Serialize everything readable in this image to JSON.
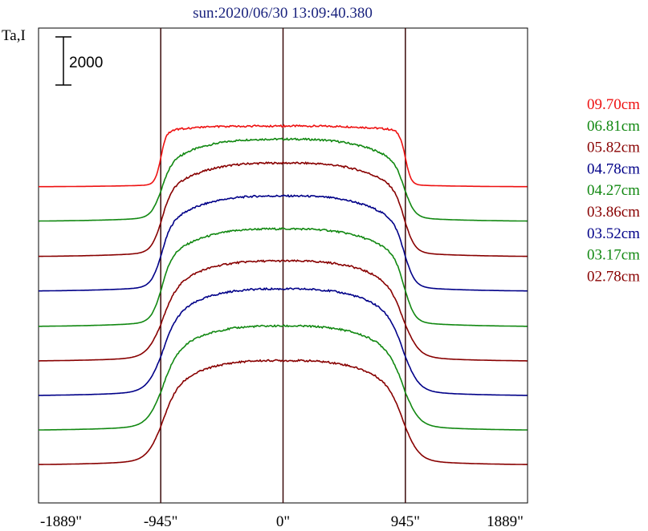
{
  "chart_data": {
    "type": "line",
    "title": "sun:2020/06/30 13:09:40.380",
    "ylabel": "Ta,I",
    "scale_bar_label": "2000",
    "x_ticks": [
      "-1889\"",
      "-945\"",
      "0\"",
      "945\"",
      "1889\""
    ],
    "x_values": [
      -1889,
      -945,
      0,
      945,
      1889
    ],
    "vertical_lines_at": [
      -945,
      0,
      945
    ],
    "series": [
      {
        "name": "09.70cm",
        "color": "#ee1111",
        "baseline": 3840,
        "peak": 4580,
        "limb": "sharp"
      },
      {
        "name": "06.81cm",
        "color": "#118811",
        "baseline": 3420,
        "peak": 4420,
        "limb": "medium"
      },
      {
        "name": "05.82cm",
        "color": "#880000",
        "baseline": 2990,
        "peak": 4130,
        "limb": "medium"
      },
      {
        "name": "04.78cm",
        "color": "#000088",
        "baseline": 2570,
        "peak": 3730,
        "limb": "medium"
      },
      {
        "name": "04.27cm",
        "color": "#118811",
        "baseline": 2140,
        "peak": 3330,
        "limb": "medium"
      },
      {
        "name": "03.86cm",
        "color": "#880000",
        "baseline": 1720,
        "peak": 2940,
        "limb": "soft"
      },
      {
        "name": "03.52cm",
        "color": "#000088",
        "baseline": 1300,
        "peak": 2600,
        "limb": "soft"
      },
      {
        "name": "03.17cm",
        "color": "#118811",
        "baseline": 880,
        "peak": 2150,
        "limb": "soft"
      },
      {
        "name": "02.78cm",
        "color": "#880000",
        "baseline": 460,
        "peak": 1730,
        "limb": "soft"
      }
    ],
    "xlim": [
      -1889,
      1889
    ],
    "ylim": [
      0,
      5770
    ],
    "grid": false,
    "legend_placement": "right"
  }
}
